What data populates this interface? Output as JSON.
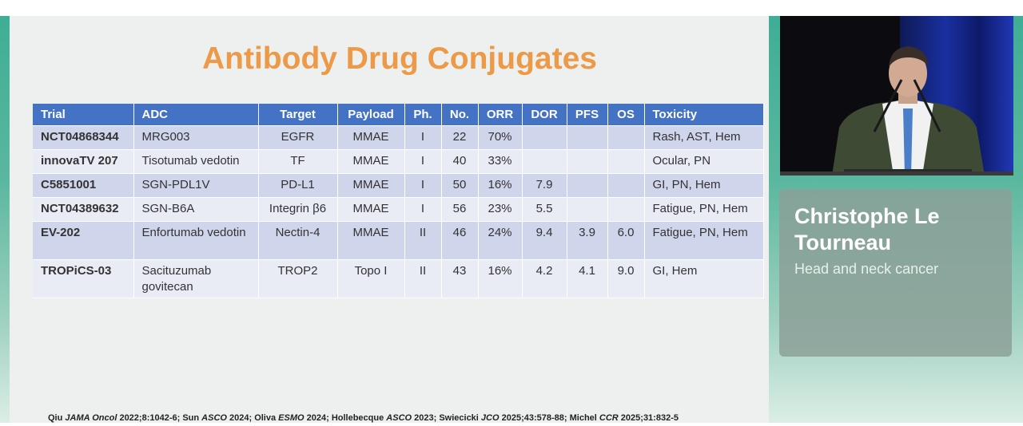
{
  "slide": {
    "title": "Antibody Drug Conjugates",
    "table": {
      "headers": [
        "Trial",
        "ADC",
        "Target",
        "Payload",
        "Ph.",
        "No.",
        "ORR",
        "DOR",
        "PFS",
        "OS",
        "Toxicity"
      ],
      "rows": [
        [
          "NCT04868344",
          "MRG003",
          "EGFR",
          "MMAE",
          "I",
          "22",
          "70%",
          "",
          "",
          "",
          "Rash, AST, Hem"
        ],
        [
          "innovaTV 207",
          "Tisotumab vedotin",
          "TF",
          "MMAE",
          "I",
          "40",
          "33%",
          "",
          "",
          "",
          "Ocular, PN"
        ],
        [
          "C5851001",
          "SGN-PDL1V",
          "PD-L1",
          "MMAE",
          "I",
          "50",
          "16%",
          "7.9",
          "",
          "",
          "GI, PN, Hem"
        ],
        [
          "NCT04389632",
          "SGN-B6A",
          "Integrin β6",
          "MMAE",
          "I",
          "56",
          "23%",
          "5.5",
          "",
          "",
          "Fatigue, PN, Hem"
        ],
        [
          "EV-202",
          "Enfortumab vedotin",
          "Nectin-4",
          "MMAE",
          "II",
          "46",
          "24%",
          "9.4",
          "3.9",
          "6.0",
          "Fatigue, PN, Hem"
        ],
        [
          "TROPiCS-03",
          "Sacituzumab govitecan",
          "TROP2",
          "Topo I",
          "II",
          "43",
          "16%",
          "4.2",
          "4.1",
          "9.0",
          "GI, Hem"
        ]
      ]
    },
    "references": {
      "r1": "Qiu ",
      "j1": "JAMA Oncol",
      "r2": " 2022;8:1042-6; Sun ",
      "j2": "ASCO",
      "r3": " 2024; Oliva ",
      "j3": "ESMO",
      "r4": " 2024; Hollebecque ",
      "j4": "ASCO",
      "r5": " 2023; Swiecicki ",
      "j5": "JCO",
      "r6": " 2025;43:578-88; Michel ",
      "j6": "CCR",
      "r7": " 2025;31:832-5"
    }
  },
  "speaker": {
    "name": "Christophe Le Tourneau",
    "topic": "Head and neck cancer"
  },
  "colors": {
    "title_orange": "#ec9a47",
    "table_header_blue": "#4472c4",
    "row_band_dark": "#cfd5ea",
    "row_band_light": "#e9ebf5",
    "frame_teal": "#3fae95"
  }
}
